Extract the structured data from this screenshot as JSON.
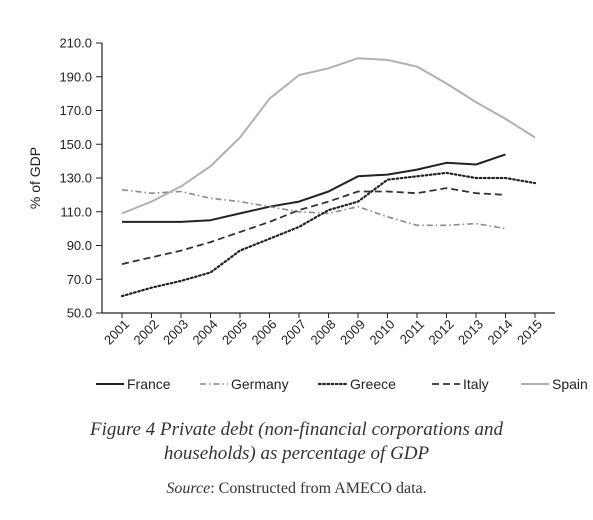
{
  "chart_data": {
    "type": "line",
    "ylabel": "% of GDP",
    "ylim": [
      50,
      210
    ],
    "yticks": [
      "50.0",
      "70.0",
      "90.0",
      "110.0",
      "130.0",
      "150.0",
      "170.0",
      "190.0",
      "210.0"
    ],
    "categories": [
      "2001",
      "2002",
      "2003",
      "2004",
      "2005",
      "2006",
      "2007",
      "2008",
      "2009",
      "2010",
      "2011",
      "2012",
      "2013",
      "2014",
      "2015"
    ],
    "grid": false,
    "legend_position": "bottom",
    "series": [
      {
        "name": "France",
        "style": "solid",
        "color": "#222222",
        "values": [
          104,
          104,
          104,
          105,
          109,
          113,
          116,
          122,
          131,
          132,
          135,
          139,
          138,
          144,
          null
        ]
      },
      {
        "name": "Germany",
        "style": "dashdot",
        "color": "#8a8a8a",
        "values": [
          123,
          121,
          122,
          118,
          116,
          113,
          110,
          109,
          113,
          107,
          102,
          102,
          103,
          100,
          null
        ]
      },
      {
        "name": "Greece",
        "style": "dotted",
        "color": "#222222",
        "values": [
          60,
          65,
          69,
          74,
          87,
          94,
          101,
          111,
          116,
          129,
          131,
          133,
          130,
          130,
          127
        ]
      },
      {
        "name": "Italy",
        "style": "dashed",
        "color": "#333333",
        "values": [
          79,
          83,
          87,
          92,
          98,
          104,
          111,
          116,
          122,
          122,
          121,
          124,
          121,
          120,
          null
        ]
      },
      {
        "name": "Spain",
        "style": "solid",
        "color": "#b0b0b0",
        "values": [
          109,
          116,
          125,
          137,
          154,
          177,
          191,
          195,
          201,
          200,
          196,
          186,
          175,
          165,
          154
        ]
      }
    ]
  },
  "caption": {
    "title_line1": "Figure 4  Private debt (non-financial corporations and",
    "title_line2": "households) as percentage of GDP",
    "source_label": "Source",
    "source_text": ": Constructed from AMECO data."
  },
  "colors": {
    "axis": "#222222",
    "text": "#222222",
    "background": "#ffffff"
  }
}
